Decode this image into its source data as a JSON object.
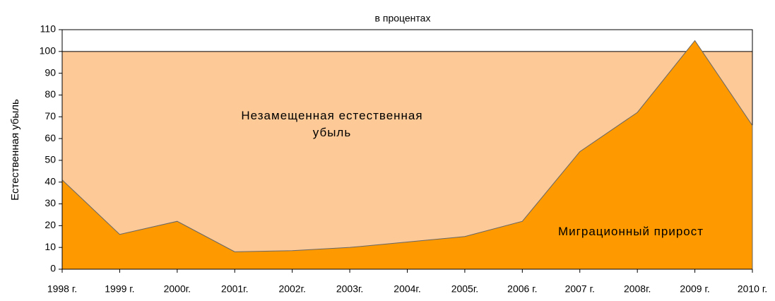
{
  "chart_data": {
    "type": "area",
    "subtitle": "в процентах",
    "y_label": "Естественная убыль",
    "categories": [
      "1998 г.",
      "1999 г.",
      "2000г.",
      "2001г.",
      "2002г.",
      "2003г.",
      "2004г.",
      "2005г.",
      "2006 г.",
      "2007 г.",
      "2008г.",
      "2009 г.",
      "2010 г."
    ],
    "series": [
      {
        "name": "Незамещенная естественная убыль",
        "color": "#fcc997",
        "values": [
          100,
          100,
          100,
          100,
          100,
          100,
          100,
          100,
          100,
          100,
          100,
          100,
          100
        ]
      },
      {
        "name": "Миграционный прирост",
        "color": "#ff9900",
        "values": [
          41,
          16,
          22,
          8,
          8.5,
          10,
          12.5,
          15,
          22,
          54,
          72,
          105,
          66
        ]
      }
    ],
    "ylim": [
      0,
      110
    ],
    "yticks": [
      0,
      10,
      20,
      30,
      40,
      50,
      60,
      70,
      80,
      90,
      100,
      110
    ]
  }
}
